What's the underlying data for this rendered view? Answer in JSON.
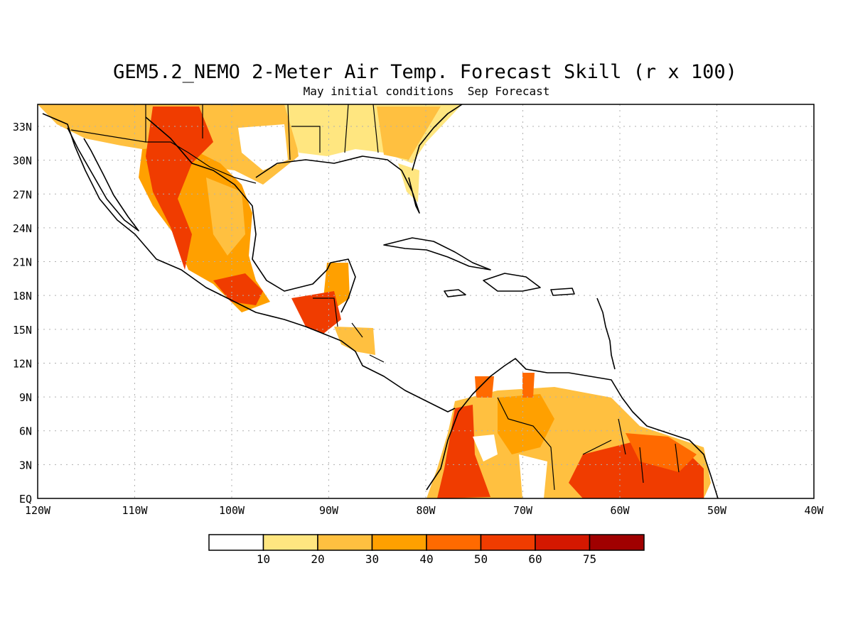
{
  "map": {
    "title": "GEM5.2_NEMO 2-Meter Air Temp. Forecast Skill (r x 100)",
    "subtitle": "May initial conditions  Sep Forecast",
    "lat_labels": [
      "33N",
      "30N",
      "27N",
      "24N",
      "21N",
      "18N",
      "15N",
      "12N",
      "9N",
      "6N",
      "3N",
      "EQ"
    ],
    "lon_labels": [
      "120W",
      "110W",
      "100W",
      "90W",
      "80W",
      "70W",
      "60W",
      "50W",
      "40W"
    ],
    "grid": true,
    "region": "Central America, Caribbean and northern South America"
  },
  "legend": {
    "labels": [
      "10",
      "20",
      "30",
      "40",
      "50",
      "60",
      "75"
    ],
    "colors": [
      "#ffffff",
      "#ffe680",
      "#ffc040",
      "#ffa000",
      "#ff6a00",
      "#f03c00",
      "#d41800",
      "#a00000"
    ]
  },
  "colors": {
    "coastline": "#000000",
    "grid": "#b0b0b0",
    "low_skill": "#ffe680",
    "mid_skill": "#ffa000",
    "high_skill": "#f03c00"
  }
}
